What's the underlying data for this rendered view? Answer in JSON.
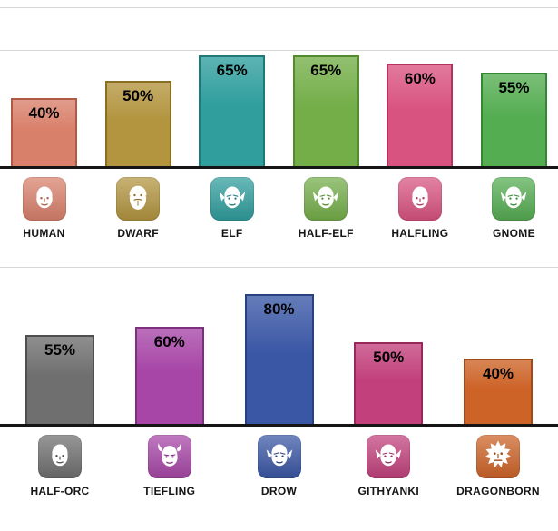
{
  "page": {
    "background": "#ffffff"
  },
  "chart_data": [
    {
      "type": "bar",
      "title": "",
      "xlabel": "",
      "ylabel": "",
      "legend": false,
      "grid": "horizontal-gridlines",
      "categories": [
        "HUMAN",
        "DWARF",
        "ELF",
        "HALF-ELF",
        "HALFLING",
        "GNOME"
      ],
      "values": [
        40,
        50,
        65,
        65,
        60,
        55
      ],
      "data_labels": [
        "40%",
        "50%",
        "65%",
        "65%",
        "60%",
        "55%"
      ],
      "bar_colors": [
        "#d9806b",
        "#b3953f",
        "#2f9e9d",
        "#74ae49",
        "#d95380",
        "#55ad52"
      ],
      "bar_border_colors": [
        "#b05a44",
        "#8a6f22",
        "#1d7a79",
        "#538c2c",
        "#b23260",
        "#348833"
      ],
      "icons": [
        "human-face-icon",
        "dwarf-face-icon",
        "elf-face-icon",
        "half-elf-face-icon",
        "halfling-face-icon",
        "gnome-face-icon"
      ],
      "glyphs": [
        "face",
        "bearded-face",
        "pointy-ear-face",
        "pointy-ear-face",
        "face",
        "pointy-ear-face"
      ]
    },
    {
      "type": "bar",
      "title": "",
      "xlabel": "",
      "ylabel": "",
      "legend": false,
      "grid": "horizontal-gridlines",
      "categories": [
        "HALF-ORC",
        "TIEFLING",
        "DROW",
        "GITHYANKI",
        "DRAGONBORN"
      ],
      "values": [
        55,
        60,
        80,
        50,
        40
      ],
      "data_labels": [
        "55%",
        "60%",
        "80%",
        "50%",
        "40%"
      ],
      "bar_colors": [
        "#6f6f6f",
        "#a746a7",
        "#3a57a5",
        "#c2417c",
        "#cd6327"
      ],
      "bar_border_colors": [
        "#4f4f4f",
        "#7e2f7e",
        "#27407f",
        "#99295d",
        "#a04a17"
      ],
      "icons": [
        "half-orc-face-icon",
        "tiefling-face-icon",
        "drow-face-icon",
        "githyanki-face-icon",
        "dragonborn-face-icon"
      ],
      "glyphs": [
        "face",
        "horned-face",
        "pointy-ear-face",
        "pointy-ear-face",
        "flame-face"
      ]
    }
  ]
}
